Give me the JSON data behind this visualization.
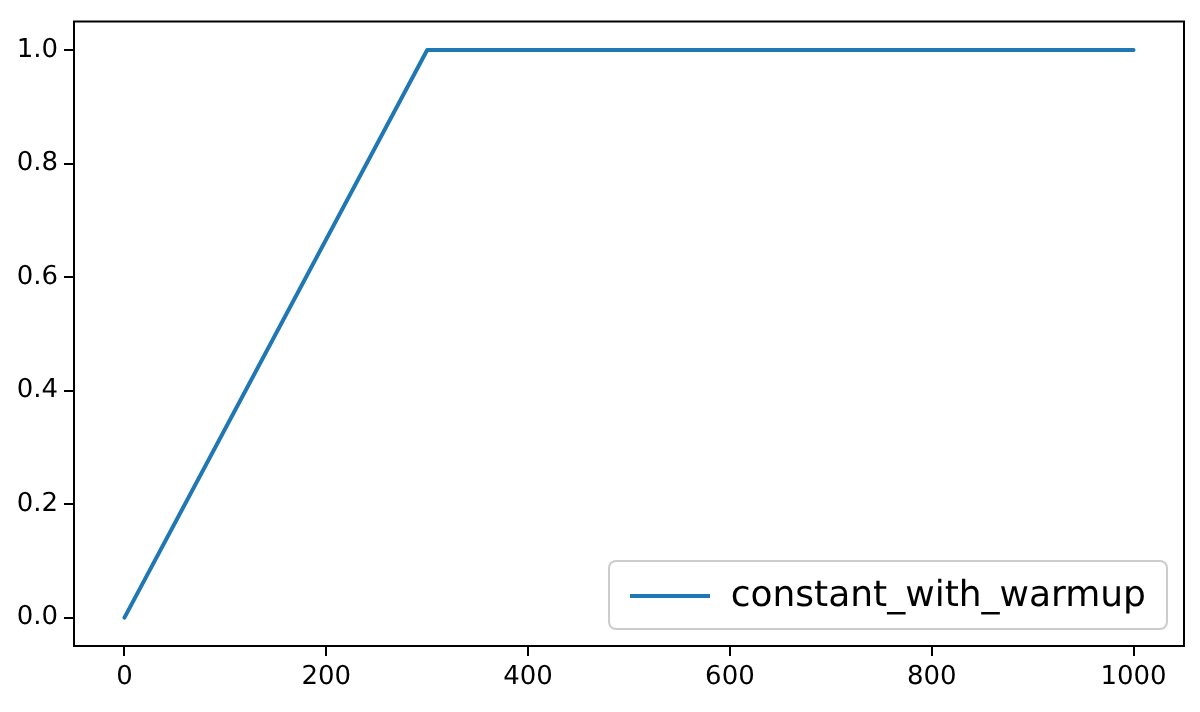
{
  "chart_data": {
    "type": "line",
    "x": [
      0,
      300,
      1000
    ],
    "series": [
      {
        "name": "constant_with_warmup",
        "color": "#1f77b4",
        "values": [
          0,
          1,
          1
        ]
      }
    ],
    "xlim": [
      -50,
      1050
    ],
    "xticks": [
      0,
      200,
      400,
      600,
      800,
      1000
    ],
    "ylim": [
      -0.05,
      1.05
    ],
    "yticks": [
      {
        "value": 0,
        "label": "0.0"
      },
      {
        "value": 0.2,
        "label": "0.2"
      },
      {
        "value": 0.4,
        "label": "0.4"
      },
      {
        "value": 0.6,
        "label": "0.6"
      },
      {
        "value": 0.8,
        "label": "0.8"
      },
      {
        "value": 1,
        "label": "1.0"
      }
    ],
    "grid": false,
    "legend": "bottom right",
    "marker": "none",
    "line_style": "solid"
  }
}
